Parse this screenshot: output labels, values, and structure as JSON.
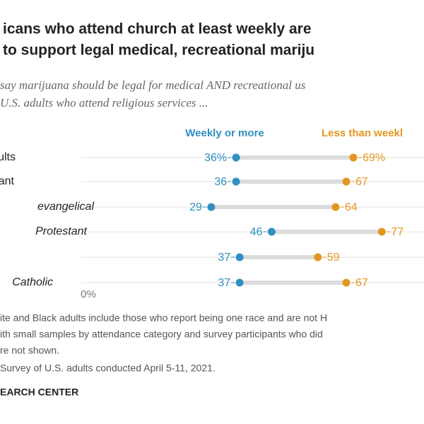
{
  "chart_data": {
    "type": "dot",
    "title_lines": [
      "icans who attend church at least weekly are",
      " to support legal medical, recreational mariju"
    ],
    "subtitle_lines": [
      "say marijuana should be legal for medical AND recreational us",
      "U.S. adults who attend religious services ..."
    ],
    "categories": [
      "ults",
      "ant",
      "evangelical",
      "Protestant",
      null,
      "Catholic"
    ],
    "series": [
      {
        "name": "Weekly or more",
        "color": "#2f8fc1",
        "values": [
          36,
          36,
          29,
          46,
          37,
          37
        ],
        "value_labels": [
          "36%",
          "36",
          "29",
          "46",
          "37",
          "37"
        ]
      },
      {
        "name": "Less than weekl",
        "color": "#e3961f",
        "values": [
          69,
          67,
          64,
          77,
          59,
          67
        ],
        "value_labels": [
          "69%",
          "67",
          "64",
          "77",
          "59",
          "67"
        ]
      }
    ],
    "xlim": [
      0,
      100
    ],
    "xticks": [
      {
        "value": 0,
        "label": "0%"
      }
    ],
    "notes": [
      "ite and Black adults include those who report being one race and are not H",
      "ith small samples by attendance category and survey participants who did",
      "re not shown.",
      "Survey of U.S. adults conducted April 5-11, 2021."
    ],
    "source": "EARCH CENTER"
  }
}
